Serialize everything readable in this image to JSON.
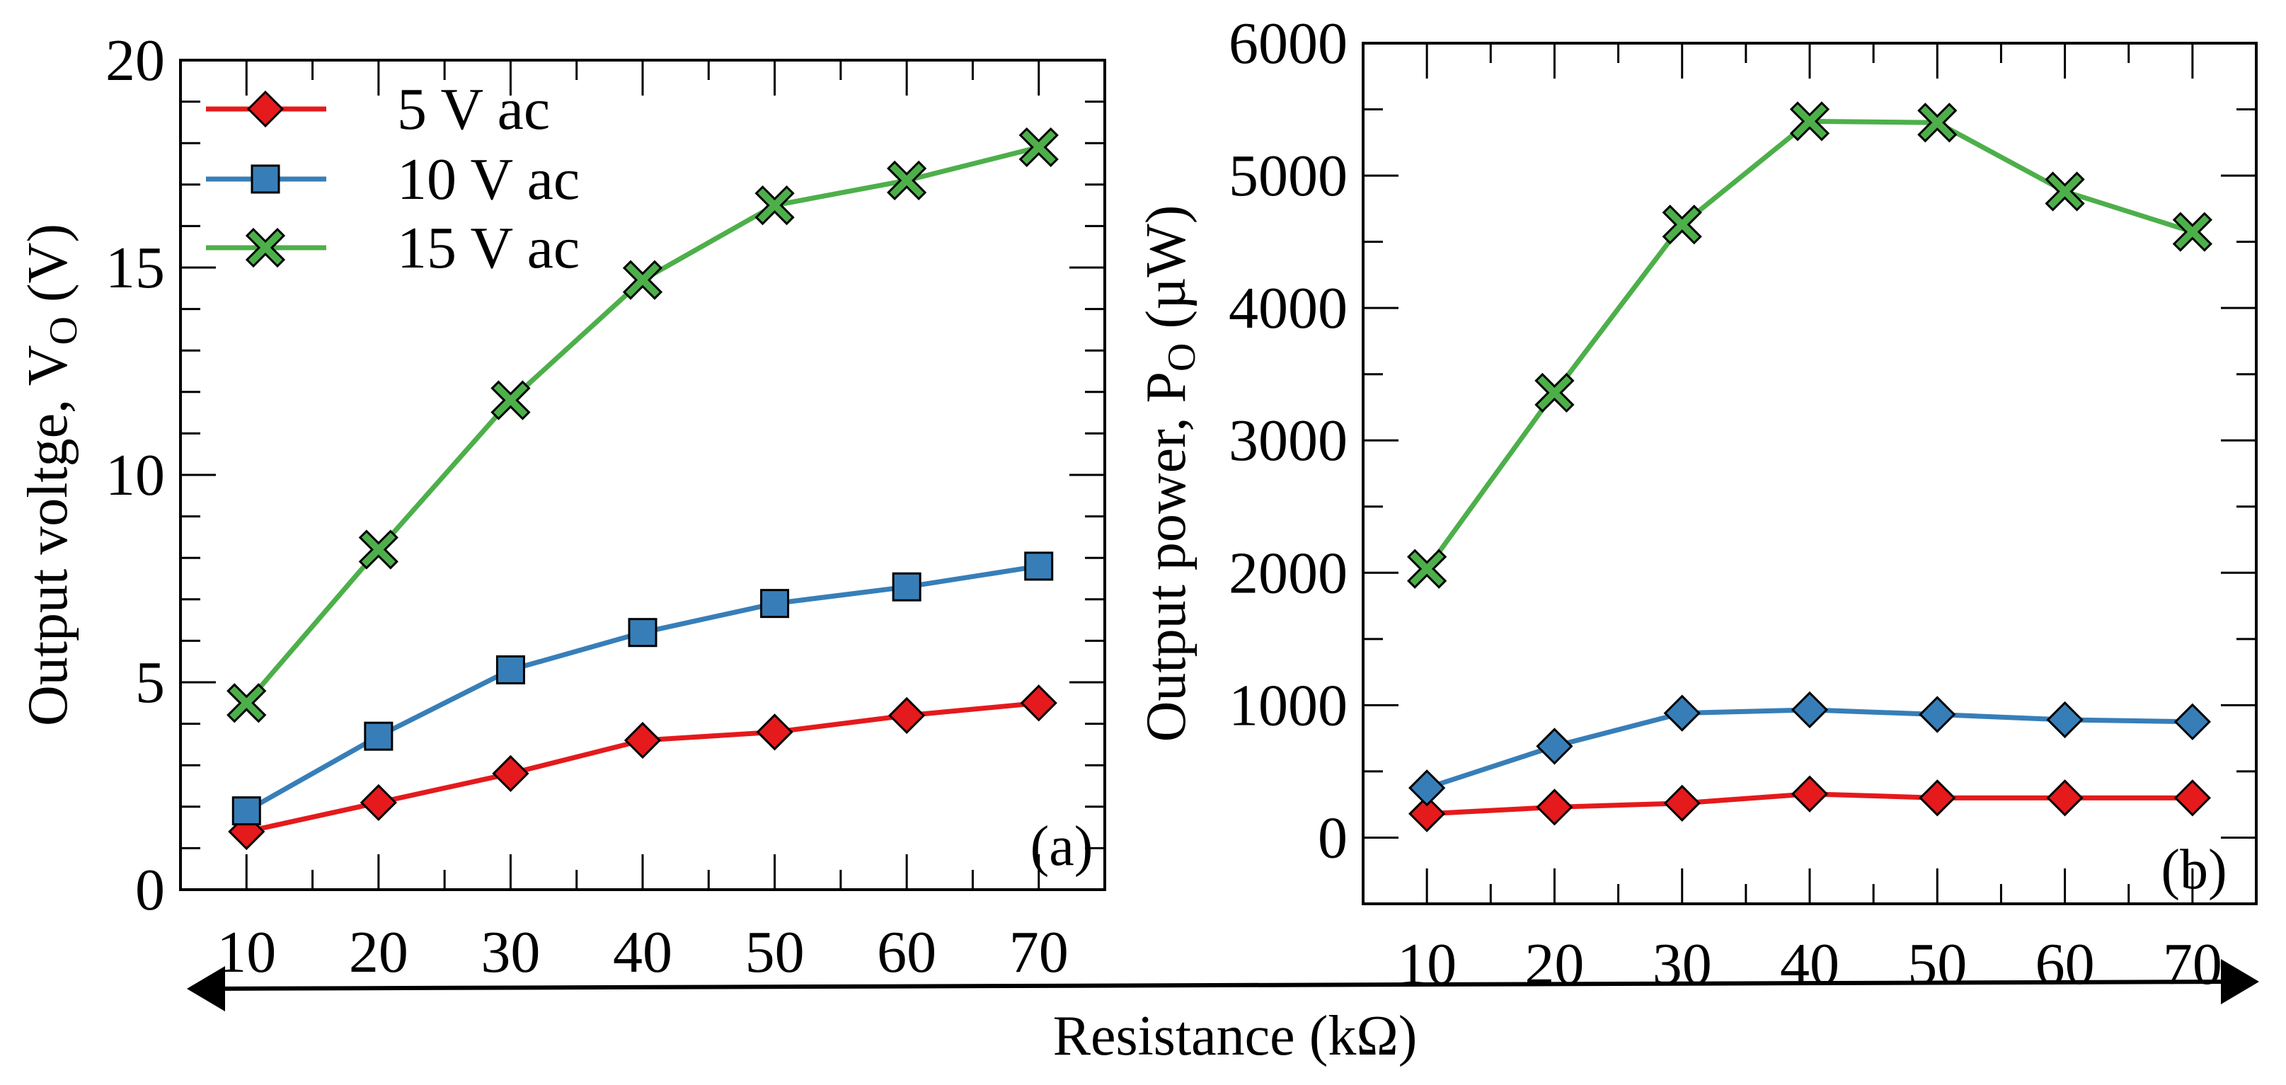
{
  "chart_data": [
    {
      "type": "line",
      "panel_label": "(a)",
      "title": "",
      "xlabel": "Resistance (kΩ)",
      "ylabel_main": "Output voltge, V",
      "ylabel_sub": "O",
      "ylabel_unit": " (V)",
      "xlim": [
        5,
        75
      ],
      "ylim": [
        0,
        20
      ],
      "x": [
        10,
        20,
        30,
        40,
        50,
        60,
        70
      ],
      "xticks": [
        10,
        20,
        30,
        40,
        50,
        60,
        70
      ],
      "yticks": [
        0,
        5,
        10,
        15,
        20
      ],
      "legend_position": "top-left",
      "series": [
        {
          "name": "5 V ac",
          "color": "#e41a1c",
          "marker": "diamond",
          "values": [
            1.4,
            2.1,
            2.8,
            3.6,
            3.8,
            4.2,
            4.5
          ]
        },
        {
          "name": "10 V ac",
          "color": "#377eb8",
          "marker": "square",
          "values": [
            1.9,
            3.7,
            5.3,
            6.2,
            6.9,
            7.3,
            7.8
          ]
        },
        {
          "name": "15 V ac",
          "color": "#4daf4a",
          "marker": "x",
          "values": [
            4.5,
            8.2,
            11.8,
            14.7,
            16.5,
            17.1,
            17.9
          ]
        }
      ]
    },
    {
      "type": "line",
      "panel_label": "(b)",
      "title": "",
      "xlabel": "Resistance (kΩ)",
      "ylabel_main": "Output power, P",
      "ylabel_sub": "O",
      "ylabel_unit": " (µW)",
      "xlim": [
        5,
        75
      ],
      "ylim": [
        -500,
        6000
      ],
      "x": [
        10,
        20,
        30,
        40,
        50,
        60,
        70
      ],
      "xticks": [
        10,
        20,
        30,
        40,
        50,
        60,
        70
      ],
      "yticks": [
        0,
        1000,
        2000,
        3000,
        4000,
        5000,
        6000
      ],
      "series": [
        {
          "name": "5 V ac",
          "color": "#e41a1c",
          "marker": "diamond",
          "values": [
            180,
            230,
            260,
            330,
            300,
            300,
            300
          ]
        },
        {
          "name": "10 V ac",
          "color": "#377eb8",
          "marker": "diamond",
          "values": [
            375,
            690,
            940,
            965,
            930,
            890,
            875
          ]
        },
        {
          "name": "15 V ac",
          "color": "#4daf4a",
          "marker": "x",
          "values": [
            2030,
            3360,
            4630,
            5410,
            5400,
            4880,
            4575
          ]
        }
      ]
    }
  ],
  "shared_xlabel": "Resistance (kΩ)"
}
